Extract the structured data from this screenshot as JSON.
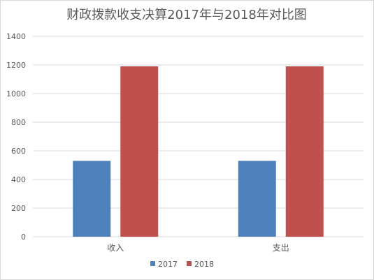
{
  "chart_data": {
    "type": "bar",
    "title": "财政拨款收支决算2017年与2018年对比图",
    "categories": [
      "收入",
      "支出"
    ],
    "series": [
      {
        "name": "2017",
        "color": "#4f81bd",
        "values": [
          530,
          530
        ]
      },
      {
        "name": "2018",
        "color": "#c0504d",
        "values": [
          1190,
          1190
        ]
      }
    ],
    "ylim": [
      0,
      1400
    ],
    "yticks": [
      0,
      200,
      400,
      600,
      800,
      1000,
      1200,
      1400
    ],
    "grid": true,
    "legend_position": "bottom"
  }
}
